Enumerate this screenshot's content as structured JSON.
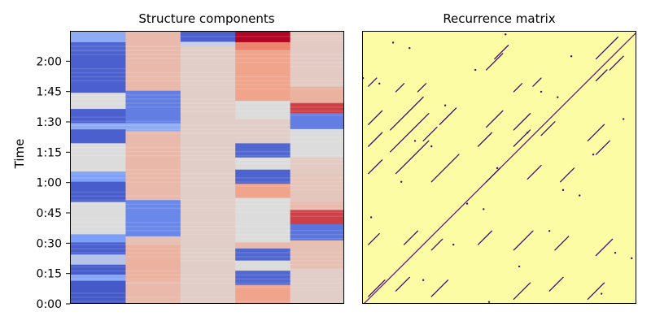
{
  "chart_data": [
    {
      "type": "heatmap",
      "title": "Structure components",
      "ylabel": "Time",
      "xlabel": "",
      "ylim_seconds": [
        0,
        135
      ],
      "ytick_labels": [
        "0:00",
        "0:15",
        "0:30",
        "0:45",
        "1:00",
        "1:15",
        "1:30",
        "1:45",
        "2:00"
      ],
      "ytick_seconds": [
        0,
        15,
        30,
        45,
        60,
        75,
        90,
        105,
        120
      ],
      "n_components": 5,
      "colormap": "coolwarm"
    },
    {
      "type": "heatmap",
      "title": "Recurrence matrix",
      "xlabel": "",
      "ylabel": "",
      "colormap": "magma (binary)"
    }
  ]
}
